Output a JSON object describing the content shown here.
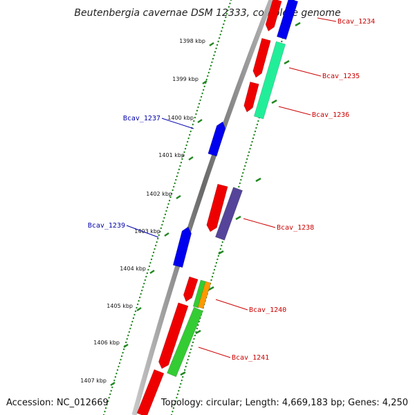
{
  "title": "Beutenbergia cavernae DSM 12333, complete genome",
  "ticks": [
    "1398 kbp",
    "1399 kbp",
    "1400 kbp",
    "1401 kbp",
    "1402 kbp",
    "1403 kbp",
    "1404 kbp",
    "1405 kbp",
    "1406 kbp",
    "1407 kbp"
  ],
  "genes": [
    {
      "label": "Bcav_1234",
      "side": "right",
      "color": "#cc0000"
    },
    {
      "label": "Bcav_1235",
      "side": "right",
      "color": "#cc0000"
    },
    {
      "label": "Bcav_1236",
      "side": "right",
      "color": "#cc0000"
    },
    {
      "label": "Bcav_1237",
      "side": "left",
      "color": "#0000aa"
    },
    {
      "label": "Bcav_1238",
      "side": "right",
      "color": "#cc0000"
    },
    {
      "label": "Bcav_1239",
      "side": "left",
      "color": "#0000aa"
    },
    {
      "label": "Bcav_1240",
      "side": "right",
      "color": "#cc0000"
    },
    {
      "label": "Bcav_1241",
      "side": "right",
      "color": "#cc0000"
    }
  ],
  "footer": {
    "accession": "Accession: NC_012669",
    "topology": "Topology: circular; Length: 4,669,183 bp; Genes: 4,250"
  },
  "colors": {
    "backbone": "#808080",
    "cds_forward": "#ee0000",
    "cds_reverse": "#0000ee",
    "rna_green": "#33cc33",
    "rna_cyan": "#22ee99",
    "other_orange": "#ff9900",
    "other_purple": "#554499",
    "dots": "#228822"
  }
}
